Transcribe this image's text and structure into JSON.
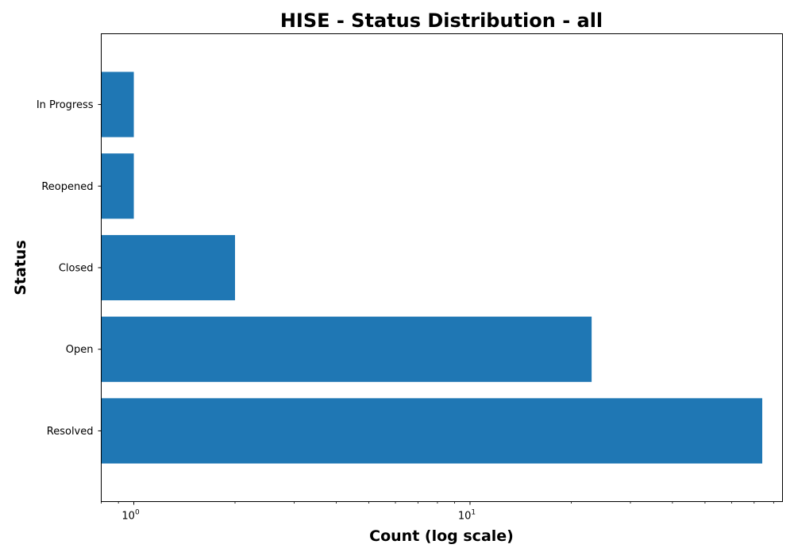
{
  "chart_data": {
    "type": "bar",
    "orientation": "horizontal",
    "title": "HISE - Status Distribution - all",
    "xlabel": "Count (log scale)",
    "ylabel": "Status",
    "x_scale": "log",
    "xlim": [
      0.8,
      85
    ],
    "categories": [
      "Resolved",
      "Open",
      "Closed",
      "Reopened",
      "In Progress"
    ],
    "values": [
      74,
      23,
      2,
      1,
      1
    ],
    "x_ticks": [
      {
        "base": "10",
        "exp": "0",
        "value": 1
      },
      {
        "base": "10",
        "exp": "1",
        "value": 10
      }
    ],
    "bar_color": "#1f77b4",
    "grid": false,
    "legend": "none"
  }
}
